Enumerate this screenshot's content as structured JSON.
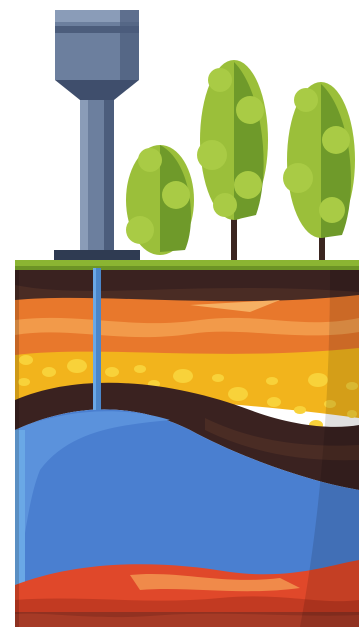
{
  "illustration": {
    "subject": "water-tower-and-underground-aquifer",
    "colors": {
      "background": "#ffffff",
      "grass": "#8bb532",
      "tower_body": "#6c7f9e",
      "tower_light": "#8a9cb8",
      "tower_dark": "#3f4e6c",
      "tower_base": "#2f3b52",
      "pipe": "#4b86c9",
      "tree_light": "#9bbf3a",
      "tree_dark": "#6f9a2a",
      "trunk": "#3b2620",
      "soil_dark": "#3a2220",
      "orange_layer": "#e8782c",
      "orange_light": "#f29a4a",
      "yellow_layer": "#f2b41c",
      "yellow_spots": "#f8d23a",
      "water": "#4a7fd0",
      "water_light": "#6aa8e6",
      "bedrock": "#e0482a"
    }
  }
}
